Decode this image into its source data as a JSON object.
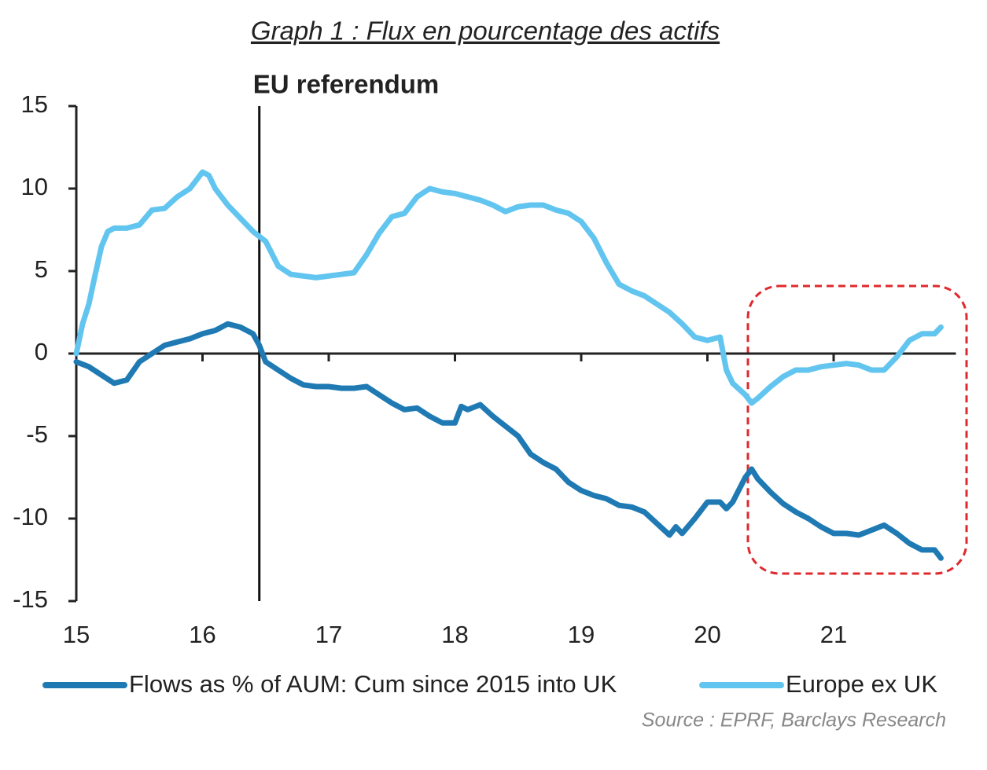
{
  "chart_data": {
    "type": "line",
    "title": "Graph 1 : Flux en pourcentage des actifs",
    "source": "Source : EPRF, Barclays Research",
    "annotations": [
      {
        "text": "EU referendum",
        "x": 16.45
      }
    ],
    "xlim": [
      15,
      22
    ],
    "xticks": [
      15,
      16,
      17,
      18,
      19,
      20,
      21
    ],
    "ylim": [
      -15,
      15
    ],
    "yticks": [
      -15,
      -10,
      -5,
      0,
      5,
      10,
      15
    ],
    "series": [
      {
        "name": "Flows as % of AUM: Cum since 2015 into UK",
        "color": "#1f7ab4",
        "x": [
          15.0,
          15.1,
          15.2,
          15.3,
          15.4,
          15.5,
          15.6,
          15.7,
          15.8,
          15.9,
          16.0,
          16.1,
          16.2,
          16.3,
          16.4,
          16.45,
          16.5,
          16.6,
          16.7,
          16.8,
          16.9,
          17.0,
          17.1,
          17.2,
          17.3,
          17.4,
          17.5,
          17.6,
          17.7,
          17.8,
          17.9,
          18.0,
          18.05,
          18.1,
          18.2,
          18.3,
          18.4,
          18.5,
          18.6,
          18.7,
          18.8,
          18.9,
          19.0,
          19.1,
          19.2,
          19.3,
          19.4,
          19.5,
          19.6,
          19.7,
          19.75,
          19.8,
          19.9,
          20.0,
          20.1,
          20.15,
          20.2,
          20.3,
          20.35,
          20.4,
          20.5,
          20.6,
          20.7,
          20.8,
          20.9,
          21.0,
          21.1,
          21.2,
          21.3,
          21.4,
          21.5,
          21.6,
          21.7,
          21.8,
          21.85
        ],
        "values": [
          -0.5,
          -0.8,
          -1.3,
          -1.8,
          -1.6,
          -0.5,
          0.0,
          0.5,
          0.7,
          0.9,
          1.2,
          1.4,
          1.8,
          1.6,
          1.2,
          0.5,
          -0.5,
          -1.0,
          -1.5,
          -1.9,
          -2.0,
          -2.0,
          -2.1,
          -2.1,
          -2.0,
          -2.5,
          -3.0,
          -3.4,
          -3.3,
          -3.8,
          -4.2,
          -4.2,
          -3.2,
          -3.4,
          -3.1,
          -3.8,
          -4.4,
          -5.0,
          -6.1,
          -6.6,
          -7.0,
          -7.8,
          -8.3,
          -8.6,
          -8.8,
          -9.2,
          -9.3,
          -9.6,
          -10.3,
          -11.0,
          -10.5,
          -10.9,
          -10.0,
          -9.0,
          -9.0,
          -9.4,
          -9.0,
          -7.5,
          -7.0,
          -7.6,
          -8.4,
          -9.1,
          -9.6,
          -10.0,
          -10.5,
          -10.9,
          -10.9,
          -11.0,
          -10.7,
          -10.4,
          -10.9,
          -11.5,
          -11.9,
          -11.9,
          -12.4
        ]
      },
      {
        "name": "Europe ex UK",
        "color": "#62c5ef",
        "x": [
          15.0,
          15.05,
          15.1,
          15.15,
          15.2,
          15.25,
          15.3,
          15.4,
          15.5,
          15.6,
          15.7,
          15.8,
          15.9,
          16.0,
          16.05,
          16.1,
          16.2,
          16.3,
          16.4,
          16.5,
          16.6,
          16.7,
          16.8,
          16.9,
          17.0,
          17.1,
          17.2,
          17.3,
          17.4,
          17.5,
          17.6,
          17.7,
          17.8,
          17.9,
          18.0,
          18.1,
          18.2,
          18.3,
          18.4,
          18.5,
          18.6,
          18.7,
          18.8,
          18.9,
          19.0,
          19.1,
          19.2,
          19.3,
          19.4,
          19.5,
          19.6,
          19.7,
          19.8,
          19.9,
          20.0,
          20.1,
          20.15,
          20.2,
          20.3,
          20.35,
          20.4,
          20.5,
          20.6,
          20.7,
          20.8,
          20.9,
          21.0,
          21.1,
          21.2,
          21.3,
          21.4,
          21.5,
          21.6,
          21.7,
          21.8,
          21.85
        ],
        "values": [
          0,
          1.8,
          3.0,
          4.8,
          6.5,
          7.4,
          7.6,
          7.6,
          7.8,
          8.7,
          8.8,
          9.5,
          10.0,
          11.0,
          10.8,
          10.0,
          9.0,
          8.2,
          7.4,
          6.8,
          5.3,
          4.8,
          4.7,
          4.6,
          4.7,
          4.8,
          4.9,
          6.0,
          7.3,
          8.3,
          8.5,
          9.5,
          10.0,
          9.8,
          9.7,
          9.5,
          9.3,
          9.0,
          8.6,
          8.9,
          9.0,
          9.0,
          8.7,
          8.5,
          8.0,
          7.0,
          5.5,
          4.2,
          3.8,
          3.5,
          3.0,
          2.5,
          1.8,
          1.0,
          0.8,
          1.0,
          -1.0,
          -1.8,
          -2.5,
          -3.0,
          -2.7,
          -2.0,
          -1.4,
          -1.0,
          -1.0,
          -0.8,
          -0.7,
          -0.6,
          -0.7,
          -1.0,
          -1.0,
          -0.2,
          0.8,
          1.2,
          1.2,
          1.6
        ]
      }
    ]
  }
}
